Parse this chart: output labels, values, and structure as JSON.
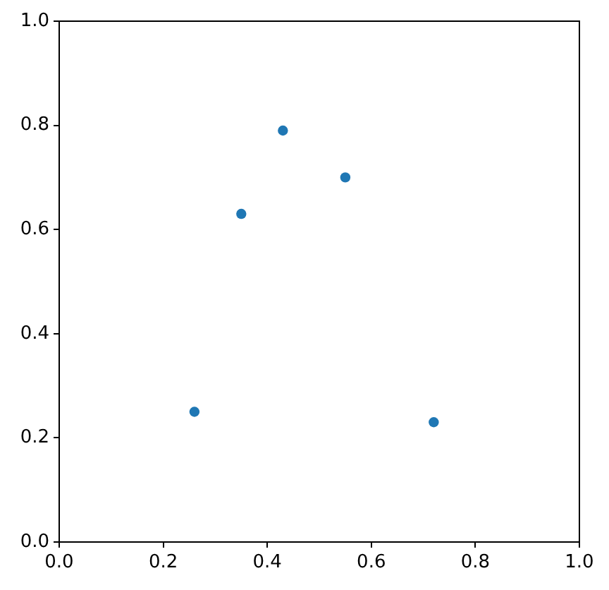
{
  "chart_data": {
    "type": "scatter",
    "x": [
      0.26,
      0.35,
      0.43,
      0.55,
      0.72
    ],
    "values": [
      0.25,
      0.63,
      0.79,
      0.7,
      0.23
    ],
    "color": "#1f77b4",
    "xlim": [
      0,
      1
    ],
    "ylim": [
      0,
      1
    ],
    "xticks": [
      {
        "value": 0,
        "label": "0.0"
      },
      {
        "value": 0.2,
        "label": "0.2"
      },
      {
        "value": 0.4,
        "label": "0.4"
      },
      {
        "value": 0.6,
        "label": "0.6"
      },
      {
        "value": 0.8,
        "label": "0.8"
      },
      {
        "value": 1,
        "label": "1.0"
      }
    ],
    "yticks": [
      {
        "value": 0,
        "label": "0.0"
      },
      {
        "value": 0.2,
        "label": "0.2"
      },
      {
        "value": 0.4,
        "label": "0.4"
      },
      {
        "value": 0.6,
        "label": "0.6"
      },
      {
        "value": 0.8,
        "label": "0.8"
      },
      {
        "value": 1,
        "label": "1.0"
      }
    ],
    "grid": false,
    "legend": false,
    "marker": "circle"
  }
}
